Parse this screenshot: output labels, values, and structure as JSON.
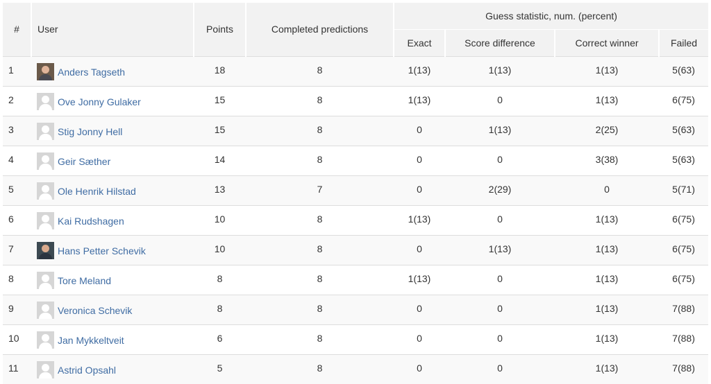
{
  "table": {
    "headers": {
      "num": "#",
      "user": "User",
      "points": "Points",
      "completed": "Completed predictions",
      "guess_group": "Guess statistic, num. (percent)",
      "exact": "Exact",
      "score_diff": "Score difference",
      "correct_winner": "Correct winner",
      "failed": "Failed"
    },
    "rows": [
      {
        "rank": "1",
        "name": "Anders Tagseth",
        "avatar": "photo-avatar",
        "points": "18",
        "completed": "8",
        "exact": "1(13)",
        "score_diff": "1(13)",
        "correct_winner": "1(13)",
        "failed": "5(63)"
      },
      {
        "rank": "2",
        "name": "Ove Jonny Gulaker",
        "avatar": "default-avatar",
        "points": "15",
        "completed": "8",
        "exact": "1(13)",
        "score_diff": "0",
        "correct_winner": "1(13)",
        "failed": "6(75)"
      },
      {
        "rank": "3",
        "name": "Stig Jonny Hell",
        "avatar": "default-avatar",
        "points": "15",
        "completed": "8",
        "exact": "0",
        "score_diff": "1(13)",
        "correct_winner": "2(25)",
        "failed": "5(63)"
      },
      {
        "rank": "4",
        "name": "Geir Sæther",
        "avatar": "default-avatar",
        "points": "14",
        "completed": "8",
        "exact": "0",
        "score_diff": "0",
        "correct_winner": "3(38)",
        "failed": "5(63)"
      },
      {
        "rank": "5",
        "name": "Ole Henrik Hilstad",
        "avatar": "default-avatar",
        "points": "13",
        "completed": "7",
        "exact": "0",
        "score_diff": "2(29)",
        "correct_winner": "0",
        "failed": "5(71)"
      },
      {
        "rank": "6",
        "name": "Kai Rudshagen",
        "avatar": "default-avatar",
        "points": "10",
        "completed": "8",
        "exact": "1(13)",
        "score_diff": "0",
        "correct_winner": "1(13)",
        "failed": "6(75)"
      },
      {
        "rank": "7",
        "name": "Hans Petter Schevik",
        "avatar": "photo-avatar",
        "points": "10",
        "completed": "8",
        "exact": "0",
        "score_diff": "1(13)",
        "correct_winner": "1(13)",
        "failed": "6(75)"
      },
      {
        "rank": "8",
        "name": "Tore Meland",
        "avatar": "default-avatar",
        "points": "8",
        "completed": "8",
        "exact": "1(13)",
        "score_diff": "0",
        "correct_winner": "1(13)",
        "failed": "6(75)"
      },
      {
        "rank": "9",
        "name": "Veronica Schevik",
        "avatar": "default-avatar",
        "points": "8",
        "completed": "8",
        "exact": "0",
        "score_diff": "0",
        "correct_winner": "1(13)",
        "failed": "7(88)"
      },
      {
        "rank": "10",
        "name": "Jan Mykkeltveit",
        "avatar": "default-avatar",
        "points": "6",
        "completed": "8",
        "exact": "0",
        "score_diff": "0",
        "correct_winner": "1(13)",
        "failed": "7(88)"
      },
      {
        "rank": "11",
        "name": "Astrid Opsahl",
        "avatar": "default-avatar",
        "points": "5",
        "completed": "8",
        "exact": "0",
        "score_diff": "0",
        "correct_winner": "1(13)",
        "failed": "7(88)"
      }
    ]
  },
  "colors": {
    "header_bg": "#f2f2f2",
    "row_stripe": "#f9f9f9",
    "link": "#3f6ca3",
    "text": "#333333"
  }
}
